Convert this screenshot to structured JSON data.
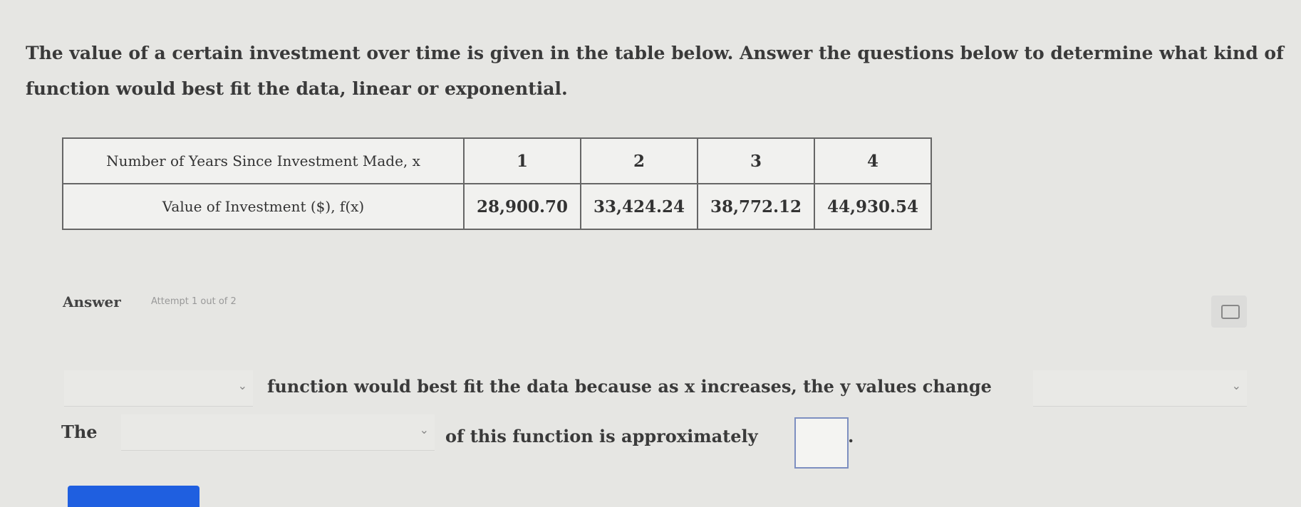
{
  "prompt": "The value of a certain investment over time is given in the table below. Answer the questions below to determine what kind of function would best fit the data, linear or exponential.",
  "table": {
    "rows": [
      {
        "header": "Number of Years Since Investment Made, x",
        "values": [
          "1",
          "2",
          "3",
          "4"
        ]
      },
      {
        "header": "Value of Investment ($), f(x)",
        "values": [
          "28,900.70",
          "33,424.24",
          "38,772.12",
          "44,930.54"
        ]
      }
    ]
  },
  "answer": {
    "label": "Answer",
    "attempt": "Attempt 1 out of 2"
  },
  "line1": {
    "dropdown1": "",
    "text": "function would best fit the data because as x increases, the y values change",
    "dropdown2": ""
  },
  "line2": {
    "prefix": "The",
    "dropdown": "",
    "text": "of this function is approximately",
    "input": "",
    "suffix": "."
  },
  "colors": {
    "accent": "#1f5fe0",
    "input_border": "#7d8fc0"
  }
}
